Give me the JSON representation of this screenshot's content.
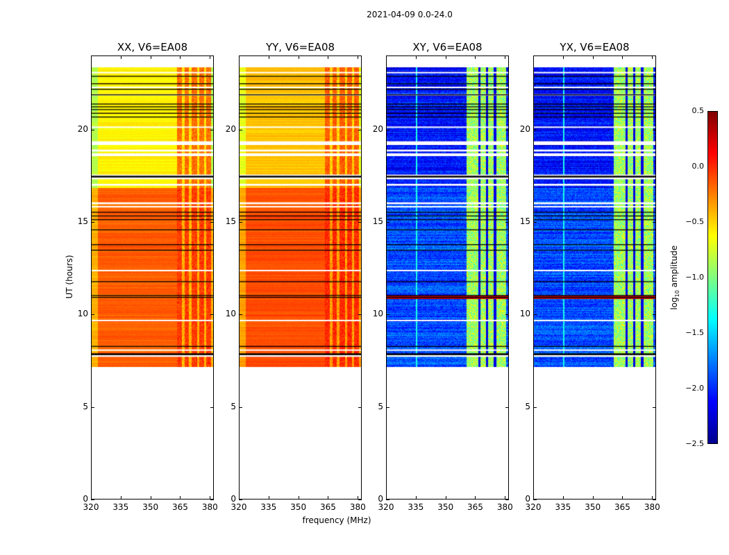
{
  "chart_data": {
    "type": "heatmap",
    "title": "2021-04-09 0.0-24.0",
    "xlabel": "frequency (MHz)",
    "ylabel": "UT (hours)",
    "xlim": [
      320,
      382
    ],
    "ylim": [
      0,
      24
    ],
    "xticks": [
      "320",
      "335",
      "350",
      "365",
      "380"
    ],
    "yticks": [
      "0",
      "5",
      "10",
      "15",
      "20"
    ],
    "data_time_range": [
      7.2,
      23.4
    ],
    "flagged_white_hours": [
      [
        19.2,
        19.4
      ],
      [
        18.6,
        18.75
      ],
      [
        18.85,
        18.95
      ],
      [
        17.35,
        17.6
      ],
      [
        17.0,
        17.1
      ],
      [
        16.0,
        16.1
      ],
      [
        15.85,
        15.9
      ],
      [
        12.4,
        12.45
      ],
      [
        9.7,
        9.75
      ],
      [
        8.1,
        8.15
      ],
      [
        7.75,
        7.85
      ],
      [
        20.15,
        20.2
      ],
      [
        21.9,
        21.95
      ],
      [
        22.3,
        22.35
      ],
      [
        23.1,
        23.15
      ]
    ],
    "flagged_black_hours": [
      22.9,
      22.5,
      22.2,
      21.9,
      21.4,
      21.25,
      21.1,
      20.9,
      20.7,
      17.5,
      15.55,
      15.35,
      15.15,
      14.6,
      13.8,
      13.5,
      11.8,
      11.05,
      10.95,
      8.3,
      7.9
    ],
    "panels": [
      {
        "title": "XX, V6=EA08",
        "base_late": -0.6,
        "base_early": -0.15,
        "band_value": -0.05,
        "band_range": [
          363,
          380
        ],
        "cross": false
      },
      {
        "title": "YY, V6=EA08",
        "base_late": -0.45,
        "base_early": -0.1,
        "band_value": 0.0,
        "band_range": [
          363,
          380
        ],
        "cross": false
      },
      {
        "title": "XY, V6=EA08",
        "base_late": -2.1,
        "base_early": -1.9,
        "band_value": -0.9,
        "band_range": [
          360,
          380
        ],
        "cross": true
      },
      {
        "title": "YX, V6=EA08",
        "base_late": -2.1,
        "base_early": -1.9,
        "band_value": -0.9,
        "band_range": [
          360,
          380
        ],
        "cross": true
      }
    ],
    "colorbar": {
      "label": "log10 amplitude",
      "label_main": "log",
      "label_sub": "10",
      "label_rest": " amplitude",
      "range": [
        -2.5,
        0.5
      ],
      "ticks": [
        "0.5",
        "0.0",
        "−0.5",
        "−1.0",
        "−1.5",
        "−2.0",
        "−2.5"
      ],
      "colormap": "jet"
    }
  }
}
